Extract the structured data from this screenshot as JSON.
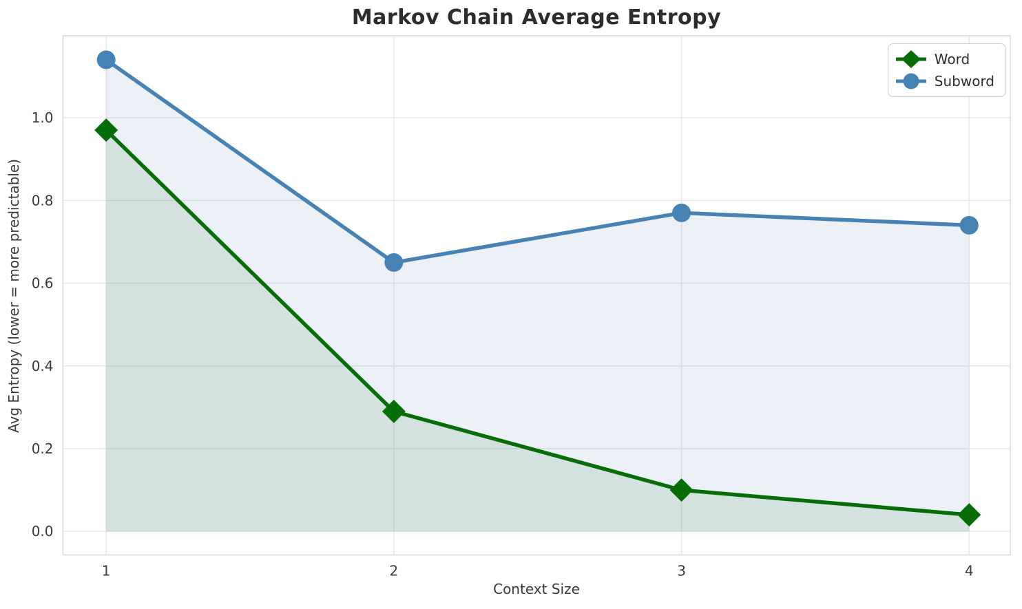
{
  "figure": {
    "title": "Markov Chain Average Entropy",
    "xlabel": "Context Size",
    "ylabel": "Avg Entropy (lower = more predictable)"
  },
  "chart_data": {
    "type": "line",
    "title": "Markov Chain Average Entropy",
    "xlabel": "Context Size",
    "ylabel": "Avg Entropy (lower = more predictable)",
    "x": [
      1,
      2,
      3,
      4
    ],
    "series": [
      {
        "name": "Word",
        "values": [
          0.97,
          0.29,
          0.1,
          0.04
        ],
        "color": "#076d07",
        "marker": "diamond",
        "area_fill": "rgba(7,109,7,0.11)"
      },
      {
        "name": "Subword",
        "values": [
          1.14,
          0.65,
          0.77,
          0.74
        ],
        "color": "#4682b4",
        "marker": "circle",
        "area_fill": "rgba(70,130,180,0.11)"
      }
    ],
    "fill_to_zero": true,
    "xticks": [
      "1",
      "2",
      "3",
      "4"
    ],
    "xtick_values": [
      1,
      2,
      3,
      4
    ],
    "yticks": [
      "0.0",
      "0.2",
      "0.4",
      "0.6",
      "0.8",
      "1.0"
    ],
    "ytick_values": [
      0.0,
      0.2,
      0.4,
      0.6,
      0.8,
      1.0
    ],
    "xlim": [
      0.85,
      4.143
    ],
    "ylim": [
      -0.057,
      1.198
    ],
    "grid": true,
    "legend_position": "upper right"
  },
  "legend": {
    "entries": [
      {
        "label": "Word",
        "color": "#076d07",
        "marker": "diamond"
      },
      {
        "label": "Subword",
        "color": "#4682b4",
        "marker": "circle"
      }
    ]
  },
  "colors": {
    "background": "#ffffff",
    "grid": "#e7e7e7",
    "spine": "#d9d9d9",
    "tick_text": "#3a3a3a",
    "title_text": "#2c2c2c"
  }
}
